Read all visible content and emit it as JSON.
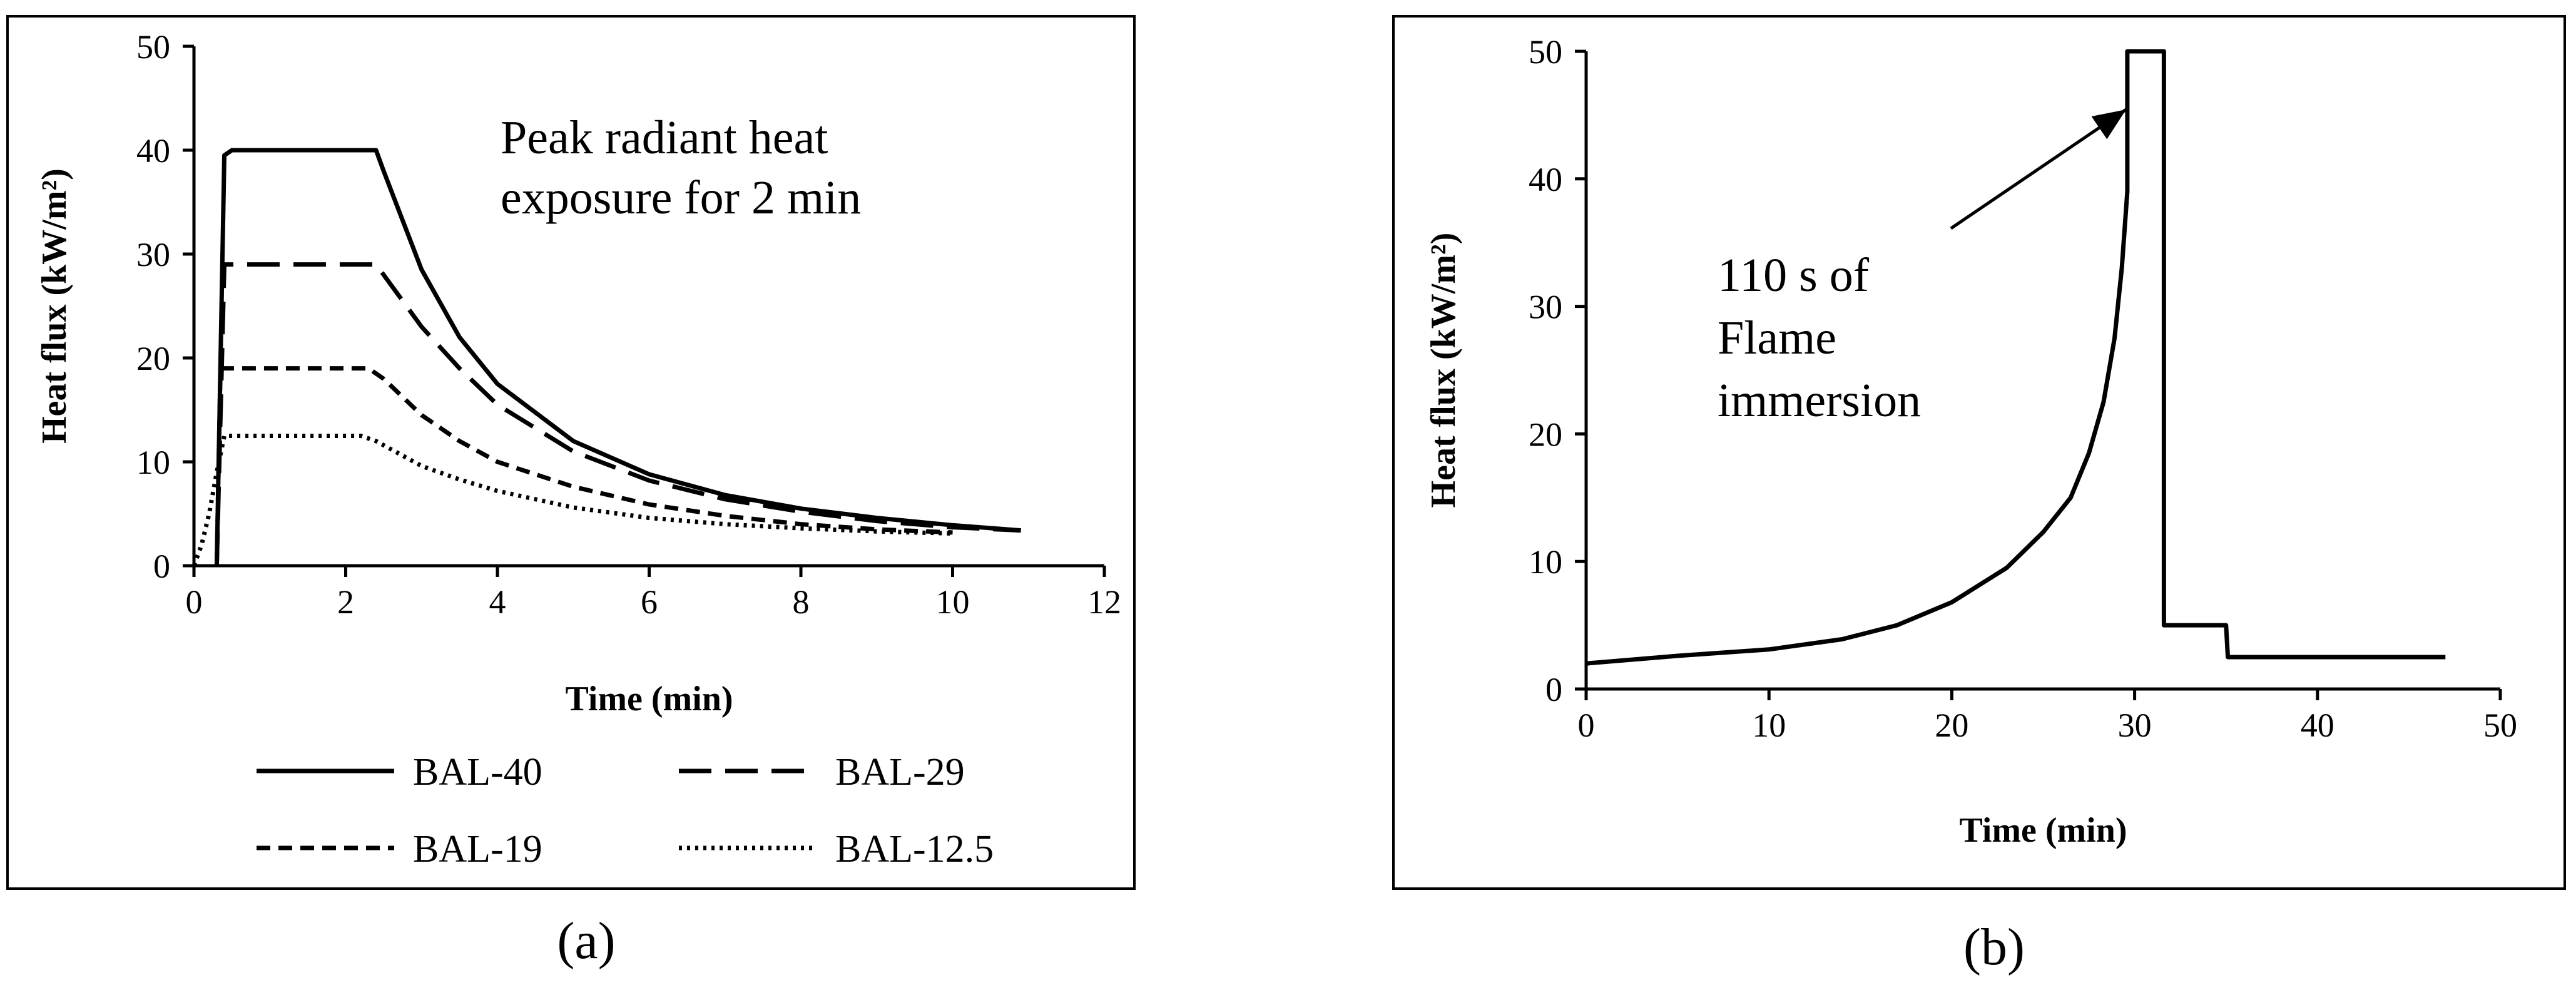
{
  "chart_data": [
    {
      "panel": "(a)",
      "type": "line",
      "title": "",
      "xlabel": "Time (min)",
      "ylabel": "Heat flux (kW/m²)",
      "xlim": [
        0,
        12
      ],
      "ylim": [
        0,
        50
      ],
      "xticks": [
        0,
        2,
        4,
        6,
        8,
        10,
        12
      ],
      "yticks": [
        0,
        10,
        20,
        30,
        40,
        50
      ],
      "grid": false,
      "legend_position": "bottom",
      "annotation": "Peak radiant heat exposure for 2 min",
      "annotation_lines": [
        "Peak radiant heat",
        "exposure for 2 min"
      ],
      "series": [
        {
          "name": "BAL-40",
          "style": "solid",
          "x": [
            0.3,
            0.4,
            0.5,
            2.3,
            2.4,
            2.5,
            3.0,
            3.5,
            4.0,
            5.0,
            6.0,
            7.0,
            8.0,
            9.0,
            10.0,
            10.9
          ],
          "y": [
            0,
            39.5,
            40,
            40,
            40,
            38,
            28.5,
            22,
            17.5,
            12,
            8.8,
            6.8,
            5.5,
            4.6,
            3.9,
            3.4
          ]
        },
        {
          "name": "BAL-29",
          "style": "dash",
          "x": [
            0.3,
            0.4,
            0.5,
            2.3,
            2.4,
            2.6,
            3.0,
            3.5,
            4.0,
            5.0,
            6.0,
            7.0,
            8.0,
            9.0,
            10.0,
            10.9
          ],
          "y": [
            0,
            29,
            29,
            29,
            29,
            27,
            23,
            19,
            15.5,
            11,
            8.2,
            6.4,
            5.2,
            4.3,
            3.7,
            3.4
          ]
        },
        {
          "name": "BAL-19",
          "style": "shortdash",
          "x": [
            0.3,
            0.35,
            0.5,
            2.3,
            2.5,
            3.0,
            3.5,
            4.0,
            5.0,
            6.0,
            7.0,
            8.0,
            9.0,
            10.0
          ],
          "y": [
            0,
            19,
            19,
            19,
            18,
            14.5,
            12,
            10,
            7.6,
            5.9,
            4.8,
            4,
            3.5,
            3.2
          ]
        },
        {
          "name": "BAL-12.5",
          "style": "dot",
          "x": [
            0.0,
            0.1,
            0.2,
            0.3,
            0.4,
            2.2,
            2.4,
            3.0,
            3.5,
            4.0,
            5.0,
            6.0,
            7.0,
            8.0,
            9.0,
            10.0
          ],
          "y": [
            0,
            2,
            5,
            9,
            12.5,
            12.5,
            12,
            9.6,
            8.3,
            7.2,
            5.6,
            4.6,
            4.0,
            3.6,
            3.3,
            3.1
          ]
        }
      ]
    },
    {
      "panel": "(b)",
      "type": "line",
      "title": "",
      "xlabel": "Time (min)",
      "ylabel": "Heat flux (kW/m²)",
      "xlim": [
        0,
        50
      ],
      "ylim": [
        0,
        50
      ],
      "xticks": [
        0,
        10,
        20,
        30,
        40,
        50
      ],
      "yticks": [
        0,
        10,
        20,
        30,
        40,
        50
      ],
      "grid": false,
      "legend_position": "none",
      "annotation": "110 s of Flame immersion",
      "annotation_lines": [
        "110 s of",
        "Flame",
        "immersion"
      ],
      "series": [
        {
          "name": "Heat flux",
          "style": "solid",
          "x": [
            0,
            5,
            10,
            14,
            17,
            20,
            23,
            25,
            26.5,
            27.5,
            28.3,
            28.9,
            29.3,
            29.6,
            29.6,
            31.6,
            31.6,
            31.7,
            35,
            35.1,
            35.3,
            47
          ],
          "y": [
            2,
            2.6,
            3.1,
            3.9,
            5,
            6.8,
            9.5,
            12.3,
            15,
            18.5,
            22.5,
            27.5,
            33,
            39,
            50,
            50,
            5,
            5,
            5,
            2.5,
            2.5,
            2.5
          ]
        }
      ]
    }
  ],
  "captions": {
    "a": "(a)",
    "b": "(b)"
  }
}
